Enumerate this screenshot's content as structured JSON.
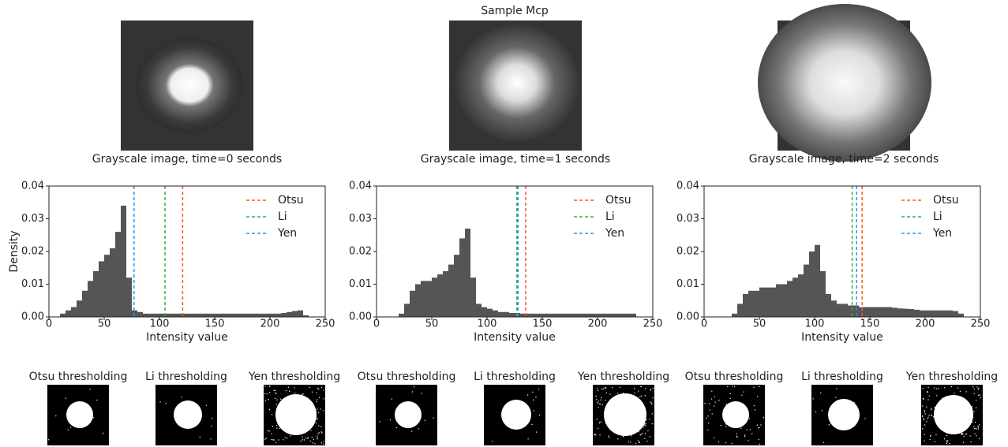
{
  "suptitle": "Sample Mcp",
  "images": [
    {
      "title": "Grayscale image, time=0 seconds"
    },
    {
      "title": "Grayscale image, time=1 seconds"
    },
    {
      "title": "Grayscale image, time=2 seconds"
    }
  ],
  "binary_images": [
    {
      "title": "Otsu thresholding"
    },
    {
      "title": "Li thresholding"
    },
    {
      "title": "Yen thresholding"
    },
    {
      "title": "Otsu thresholding"
    },
    {
      "title": "Li thresholding"
    },
    {
      "title": "Yen thresholding"
    },
    {
      "title": "Otsu thresholding"
    },
    {
      "title": "Li thresholding"
    },
    {
      "title": "Yen thresholding"
    }
  ],
  "chart_data": [
    {
      "type": "histogram",
      "xlabel": "Intensity value",
      "ylabel": "Density",
      "color": "#555555",
      "bins": [
        0,
        5,
        10,
        15,
        20,
        25,
        30,
        35,
        40,
        45,
        50,
        55,
        60,
        65,
        70,
        75,
        80,
        85,
        90,
        95,
        100,
        105,
        110,
        115,
        120,
        125,
        130,
        135,
        140,
        145,
        150,
        155,
        160,
        165,
        170,
        175,
        180,
        185,
        190,
        195,
        200,
        205,
        210,
        215,
        220,
        225,
        230,
        235,
        240,
        245,
        250
      ],
      "counts": [
        0,
        0,
        0.001,
        0.002,
        0.003,
        0.005,
        0.008,
        0.011,
        0.014,
        0.017,
        0.019,
        0.021,
        0.026,
        0.034,
        0.012,
        0.002,
        0.0015,
        0.001,
        0.001,
        0.001,
        0.001,
        0.001,
        0.001,
        0.001,
        0.001,
        0.001,
        0.001,
        0.001,
        0.001,
        0.001,
        0.001,
        0.001,
        0.001,
        0.001,
        0.001,
        0.001,
        0.001,
        0.001,
        0.001,
        0.001,
        0.001,
        0.001,
        0.0012,
        0.0015,
        0.0018,
        0.002,
        0.0005,
        0,
        0,
        0
      ],
      "vlines": [
        {
          "name": "Otsu",
          "color": "#ff5722",
          "x": 121
        },
        {
          "name": "Li",
          "color": "#3cb043",
          "x": 105
        },
        {
          "name": "Yen",
          "color": "#2196f3",
          "x": 77
        }
      ],
      "xlim": [
        0,
        250
      ],
      "xticks": [
        0,
        50,
        100,
        150,
        200,
        250
      ],
      "ylim": [
        0,
        0.04
      ],
      "yticks": [
        {
          "value": 0,
          "label": "0.00"
        },
        0.01,
        0.02,
        0.03,
        0.04
      ],
      "legend": "upper right"
    },
    {
      "type": "histogram",
      "xlabel": "Intensity value",
      "color": "#555555",
      "bins": [
        0,
        5,
        10,
        15,
        20,
        25,
        30,
        35,
        40,
        45,
        50,
        55,
        60,
        65,
        70,
        75,
        80,
        85,
        90,
        95,
        100,
        105,
        110,
        115,
        120,
        125,
        130,
        135,
        140,
        145,
        150,
        155,
        160,
        165,
        170,
        175,
        180,
        185,
        190,
        195,
        200,
        205,
        210,
        215,
        220,
        225,
        230,
        235,
        240,
        245,
        250
      ],
      "counts": [
        0,
        0,
        0,
        0,
        0.001,
        0.004,
        0.008,
        0.01,
        0.011,
        0.011,
        0.012,
        0.013,
        0.014,
        0.016,
        0.019,
        0.024,
        0.027,
        0.012,
        0.004,
        0.003,
        0.0025,
        0.002,
        0.0015,
        0.0015,
        0.0012,
        0.0012,
        0.001,
        0.001,
        0.001,
        0.001,
        0.001,
        0.001,
        0.001,
        0.001,
        0.001,
        0.001,
        0.001,
        0.001,
        0.001,
        0.001,
        0.001,
        0.001,
        0.001,
        0.001,
        0.001,
        0.001,
        0.001,
        0,
        0,
        0
      ],
      "vlines": [
        {
          "name": "Otsu",
          "color": "#ff5722",
          "x": 135
        },
        {
          "name": "Li",
          "color": "#3cb043",
          "x": 127
        },
        {
          "name": "Yen",
          "color": "#2196f3",
          "x": 128
        }
      ],
      "xlim": [
        0,
        250
      ],
      "xticks": [
        0,
        50,
        100,
        150,
        200,
        250
      ],
      "ylim": [
        0,
        0.04
      ],
      "yticks": [
        {
          "value": 0,
          "label": "0.00"
        },
        0.01,
        0.02,
        0.03,
        0.04
      ],
      "legend": "upper right"
    },
    {
      "type": "histogram",
      "xlabel": "Intensity value",
      "color": "#555555",
      "bins": [
        0,
        5,
        10,
        15,
        20,
        25,
        30,
        35,
        40,
        45,
        50,
        55,
        60,
        65,
        70,
        75,
        80,
        85,
        90,
        95,
        100,
        105,
        110,
        115,
        120,
        125,
        130,
        135,
        140,
        145,
        150,
        155,
        160,
        165,
        170,
        175,
        180,
        185,
        190,
        195,
        200,
        205,
        210,
        215,
        220,
        225,
        230,
        235,
        240,
        245,
        250
      ],
      "counts": [
        0,
        0,
        0,
        0,
        0,
        0.001,
        0.004,
        0.007,
        0.008,
        0.008,
        0.009,
        0.009,
        0.009,
        0.01,
        0.01,
        0.011,
        0.012,
        0.013,
        0.016,
        0.02,
        0.022,
        0.014,
        0.007,
        0.005,
        0.004,
        0.004,
        0.0035,
        0.0035,
        0.003,
        0.003,
        0.003,
        0.003,
        0.003,
        0.003,
        0.0028,
        0.0026,
        0.0025,
        0.0024,
        0.0022,
        0.002,
        0.002,
        0.002,
        0.002,
        0.002,
        0.002,
        0.0018,
        0.001,
        0,
        0,
        0
      ],
      "vlines": [
        {
          "name": "Otsu",
          "color": "#ff5722",
          "x": 143
        },
        {
          "name": "Li",
          "color": "#3cb043",
          "x": 134
        },
        {
          "name": "Yen",
          "color": "#2196f3",
          "x": 138
        }
      ],
      "xlim": [
        0,
        250
      ],
      "xticks": [
        0,
        50,
        100,
        150,
        200,
        250
      ],
      "ylim": [
        0,
        0.04
      ],
      "yticks": [
        {
          "value": 0,
          "label": "0.00"
        },
        0.01,
        0.02,
        0.03,
        0.04
      ],
      "legend": "upper right"
    }
  ]
}
